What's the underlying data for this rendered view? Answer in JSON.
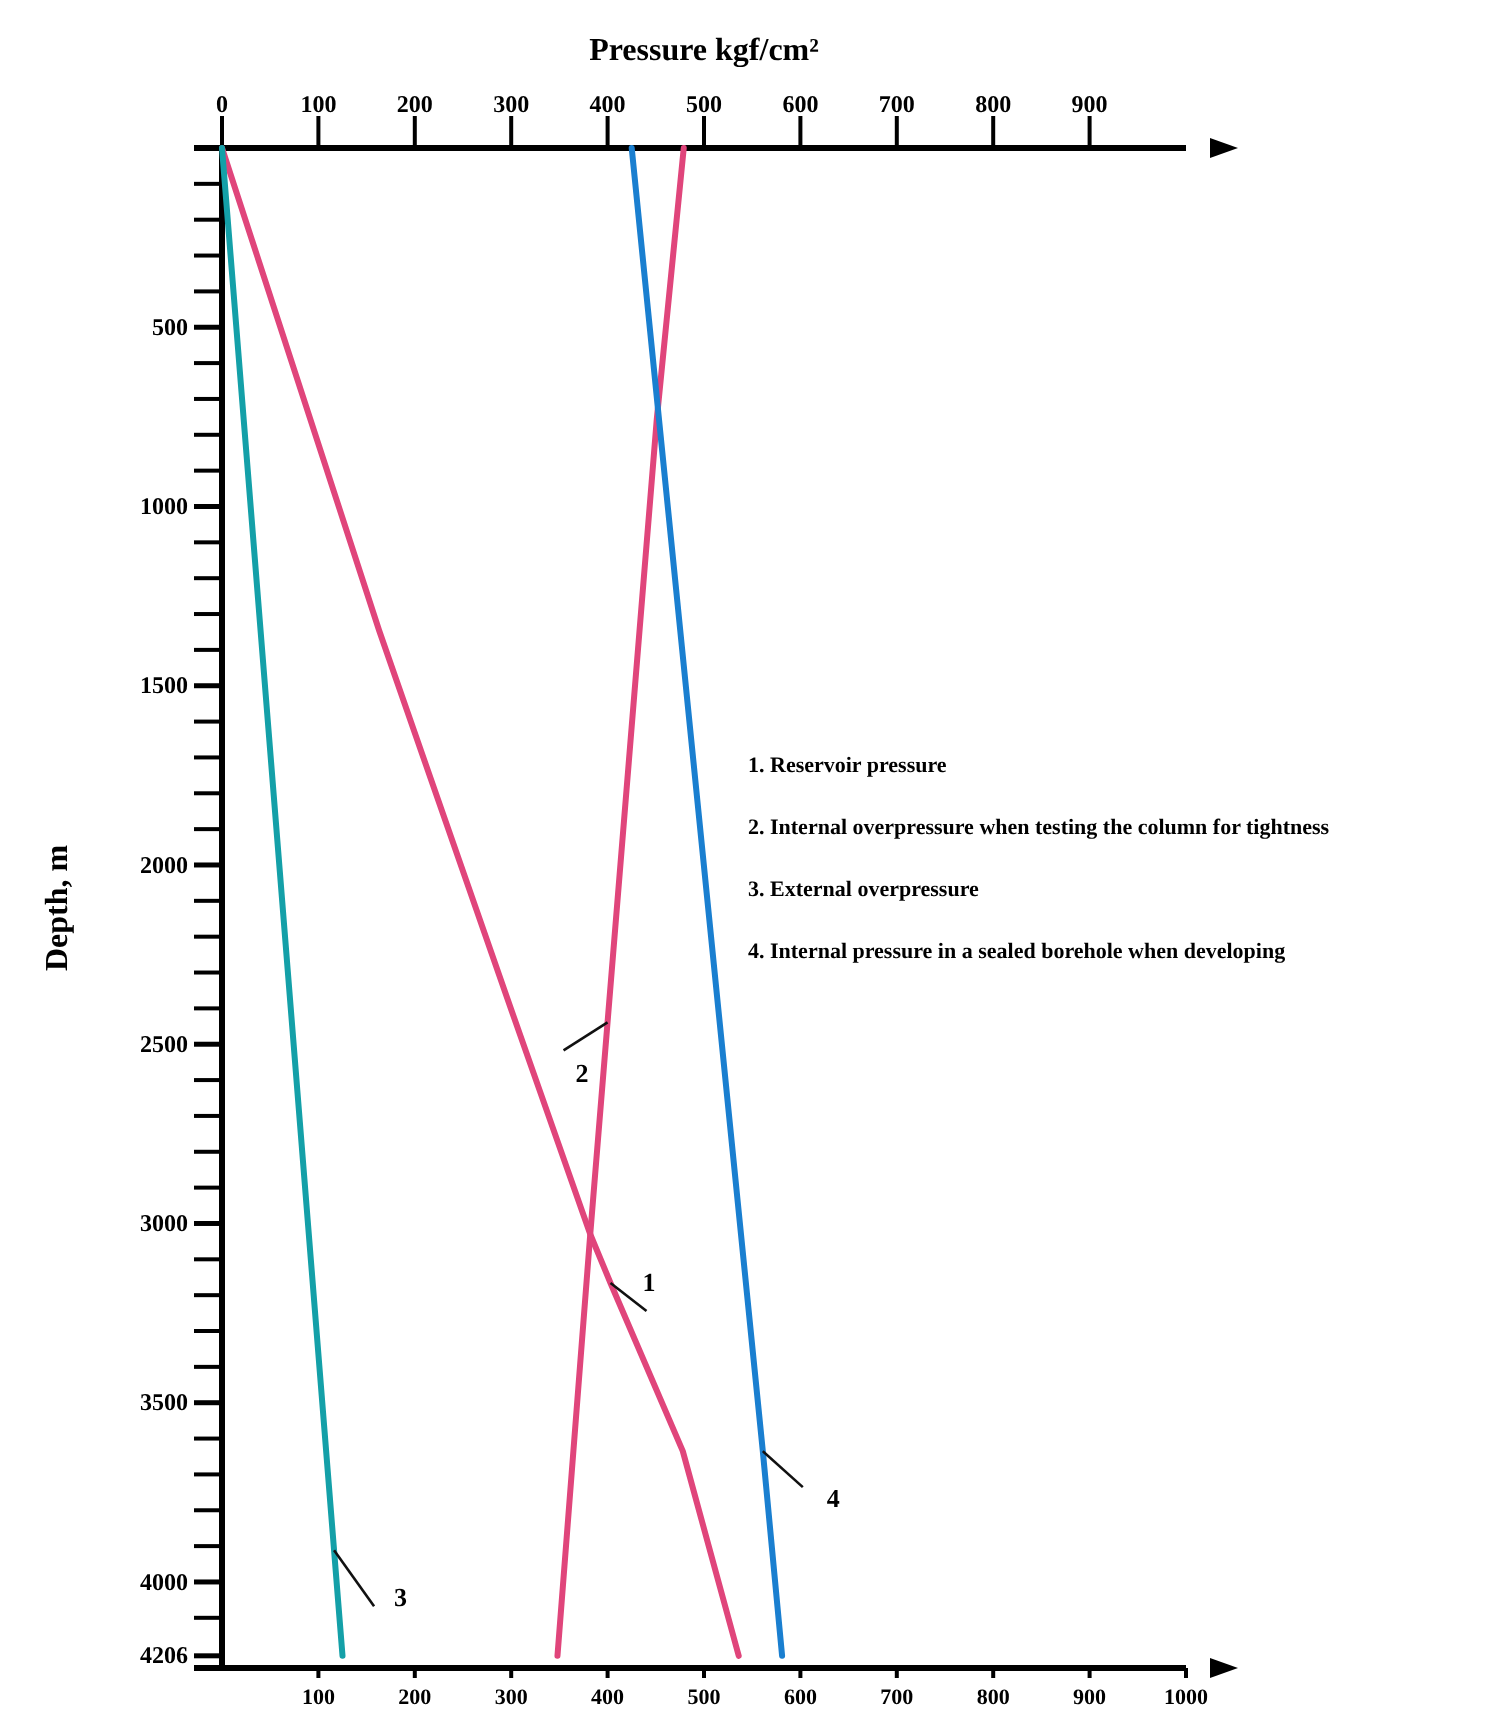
{
  "chart_data": {
    "type": "line",
    "x2label": "Pressure kgf/cm²",
    "ylabel": "Depth, m",
    "xlim": [
      0,
      1000
    ],
    "xticks": [
      100,
      200,
      300,
      400,
      500,
      600,
      700,
      800,
      900,
      1000
    ],
    "x2lim": [
      0,
      1000
    ],
    "x2ticks": [
      0,
      100,
      200,
      300,
      400,
      500,
      600,
      700,
      800,
      900
    ],
    "ylim": [
      4240,
      0
    ],
    "yticks": [
      {
        "value": 100,
        "label": null
      },
      {
        "value": 200,
        "label": null
      },
      {
        "value": 300,
        "label": null
      },
      {
        "value": 400,
        "label": null
      },
      500,
      {
        "value": 600,
        "label": null
      },
      {
        "value": 700,
        "label": null
      },
      {
        "value": 800,
        "label": null
      },
      {
        "value": 900,
        "label": null
      },
      1000,
      {
        "value": 1100,
        "label": null
      },
      {
        "value": 1200,
        "label": null
      },
      {
        "value": 1300,
        "label": null
      },
      {
        "value": 1400,
        "label": null
      },
      1500,
      {
        "value": 1600,
        "label": null
      },
      {
        "value": 1700,
        "label": null
      },
      {
        "value": 1800,
        "label": null
      },
      {
        "value": 1900,
        "label": null
      },
      2000,
      {
        "value": 2100,
        "label": null
      },
      {
        "value": 2200,
        "label": null
      },
      {
        "value": 2300,
        "label": null
      },
      {
        "value": 2400,
        "label": null
      },
      2500,
      {
        "value": 2600,
        "label": null
      },
      {
        "value": 2700,
        "label": null
      },
      {
        "value": 2800,
        "label": null
      },
      {
        "value": 2900,
        "label": null
      },
      3000,
      {
        "value": 3100,
        "label": null
      },
      {
        "value": 3200,
        "label": null
      },
      {
        "value": 3300,
        "label": null
      },
      {
        "value": 3400,
        "label": null
      },
      3500,
      {
        "value": 3600,
        "label": null
      },
      {
        "value": 3700,
        "label": null
      },
      {
        "value": 3800,
        "label": null
      },
      {
        "value": 3900,
        "label": null
      },
      4000,
      {
        "value": 4100,
        "label": null
      },
      4206
    ],
    "series": [
      {
        "name": "1",
        "color": "#e0457b",
        "x": [
          0,
          163,
          295,
          382,
          403,
          478,
          536
        ],
        "values": [
          0,
          1346,
          2365,
          3030,
          3166,
          3635,
          4206
        ]
      },
      {
        "name": "2",
        "color": "#e0457b",
        "x": [
          479,
          451,
          382,
          348
        ],
        "values": [
          0,
          757,
          3030,
          4206
        ]
      },
      {
        "name": "3",
        "color": "#14a0a8",
        "x": [
          0,
          125
        ],
        "values": [
          0,
          4206
        ]
      },
      {
        "name": "4",
        "color": "#1a7fd0",
        "x": [
          425,
          561,
          581
        ],
        "values": [
          0,
          3635,
          4206
        ]
      }
    ],
    "annotations": [
      "1. Reservoir pressure",
      "2. Internal overpressure when testing the column for tightness",
      "3. External overpressure",
      "4. Internal pressure in a sealed borehole when developing"
    ]
  }
}
